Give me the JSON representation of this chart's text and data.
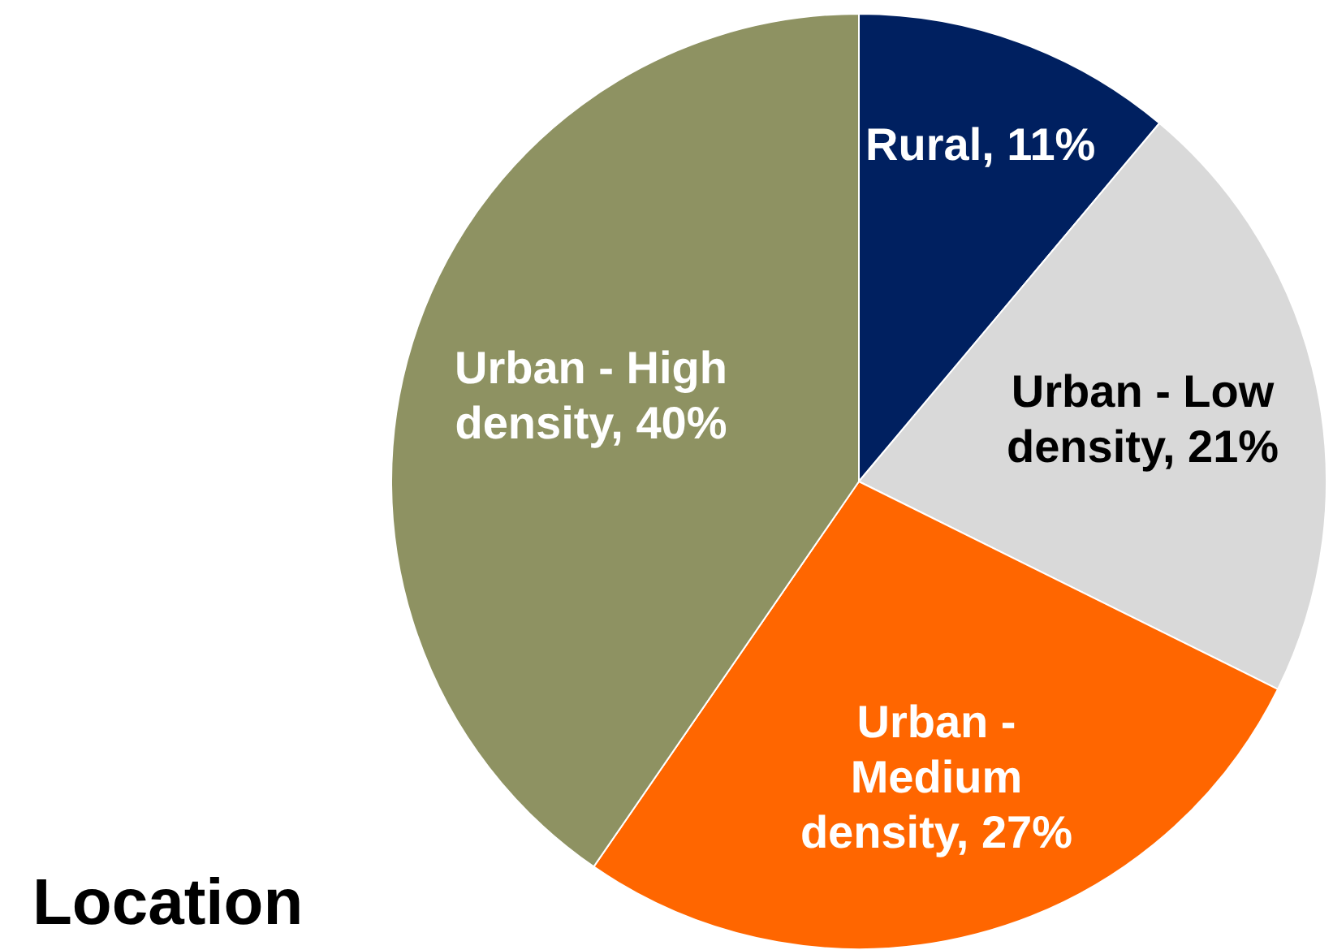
{
  "chart_data": {
    "type": "pie",
    "title": "Location",
    "categories": [
      "Rural",
      "Urban - Low density",
      "Urban - Medium density",
      "Urban - High density"
    ],
    "values": [
      11,
      21,
      27,
      40
    ],
    "value_labels": [
      "11%",
      "21%",
      "27%",
      "40%"
    ],
    "colors": [
      "#002060",
      "#d9d9d9",
      "#ff6600",
      "#8e9262"
    ],
    "legend": false
  }
}
